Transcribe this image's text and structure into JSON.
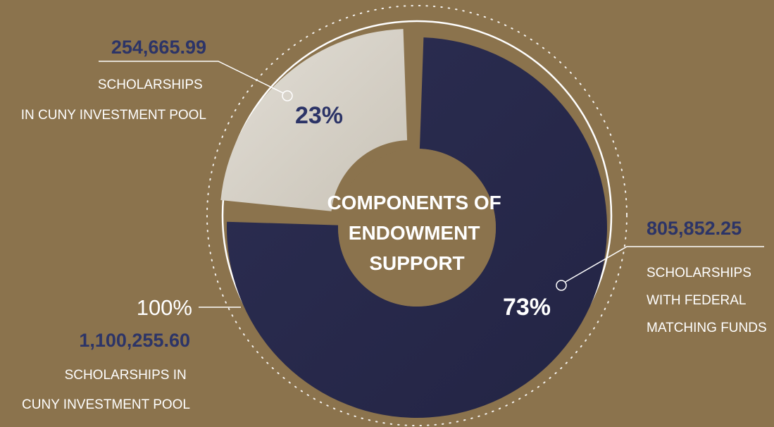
{
  "chart_data": {
    "type": "pie",
    "title": "COMPONENTS OF ENDOWMENT SUPPORT",
    "title_lines": [
      "COMPONENTS OF",
      "ENDOWMENT",
      "SUPPORT"
    ],
    "total": {
      "percent_label": "100%",
      "value_label": "1,100,255.60",
      "value": 1100255.6,
      "description_lines": [
        "SCHOLARSHIPS IN",
        "CUNY INVESTMENT POOL"
      ]
    },
    "slices": [
      {
        "percent_label": "23%",
        "percent": 23,
        "value_label": "254,665.99",
        "value": 254665.99,
        "description_lines": [
          "SCHOLARSHIPS",
          "IN CUNY INVESTMENT POOL"
        ],
        "color": "#d5d0c6",
        "label_color": "#2c3467"
      },
      {
        "percent_label": "73%",
        "percent": 73,
        "value_label": "805,852.25",
        "value": 805852.25,
        "description_lines": [
          "SCHOLARSHIPS",
          "WITH FEDERAL",
          "MATCHING FUNDS"
        ],
        "color": "#28294a",
        "label_color": "#ffffff"
      }
    ]
  },
  "colors": {
    "background": "#8b734d",
    "accent_blue": "#2c3467",
    "ring": "#ffffff",
    "center": "#8b734d"
  }
}
